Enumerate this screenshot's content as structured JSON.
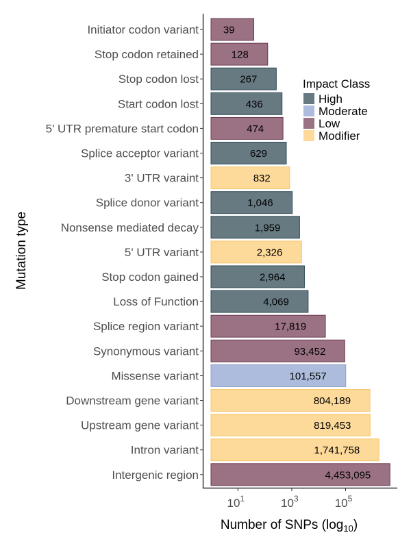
{
  "chart_data": {
    "type": "bar",
    "orientation": "horizontal",
    "xscale": "log10",
    "xlabel_main": "Number of SNPs (log",
    "xlabel_sub": "10",
    "xlabel_end": ")",
    "ylabel": "Mutation type",
    "xticks": [
      {
        "value": 10,
        "base": "10",
        "exp": "1"
      },
      {
        "value": 1000,
        "base": "10",
        "exp": "3"
      },
      {
        "value": 100000,
        "base": "10",
        "exp": "5"
      }
    ],
    "legend": {
      "title": "Impact Class",
      "position": "right",
      "entries": [
        {
          "name": "High",
          "color": "#677a82"
        },
        {
          "name": "Moderate",
          "color": "#adbcdc"
        },
        {
          "name": "Low",
          "color": "#9b7283"
        },
        {
          "name": "Modifier",
          "color": "#fdda9a"
        }
      ]
    },
    "categories": [
      "Initiator codon variant",
      "Stop codon retained",
      "Stop codon lost",
      "Start codon lost",
      "5' UTR premature start codon",
      "Splice acceptor variant",
      "3' UTR varaint",
      "Splice donor variant",
      "Nonsense mediated decay",
      "5' UTR variant",
      "Stop codon gained",
      "Loss of Function",
      "Splice region variant",
      "Synonymous variant",
      "Missense variant",
      "Downstream gene variant",
      "Upstream gene variant",
      "Intron variant",
      "Intergenic region"
    ],
    "values": [
      39,
      128,
      267,
      436,
      474,
      629,
      832,
      1046,
      1959,
      2326,
      2964,
      4069,
      17819,
      93452,
      101557,
      804189,
      819453,
      1741758,
      4453095
    ],
    "value_labels": [
      "39",
      "128",
      "267",
      "436",
      "474",
      "629",
      "832",
      "1,046",
      "1,959",
      "2,326",
      "2,964",
      "4,069",
      "17,819",
      "93,452",
      "101,557",
      "804,189",
      "819,453",
      "1,741,758",
      "4,453,095"
    ],
    "impact": [
      "Low",
      "Low",
      "High",
      "High",
      "Low",
      "High",
      "Modifier",
      "High",
      "High",
      "Modifier",
      "High",
      "High",
      "Low",
      "Low",
      "Moderate",
      "Modifier",
      "Modifier",
      "Modifier",
      "Low"
    ],
    "grid": false
  }
}
